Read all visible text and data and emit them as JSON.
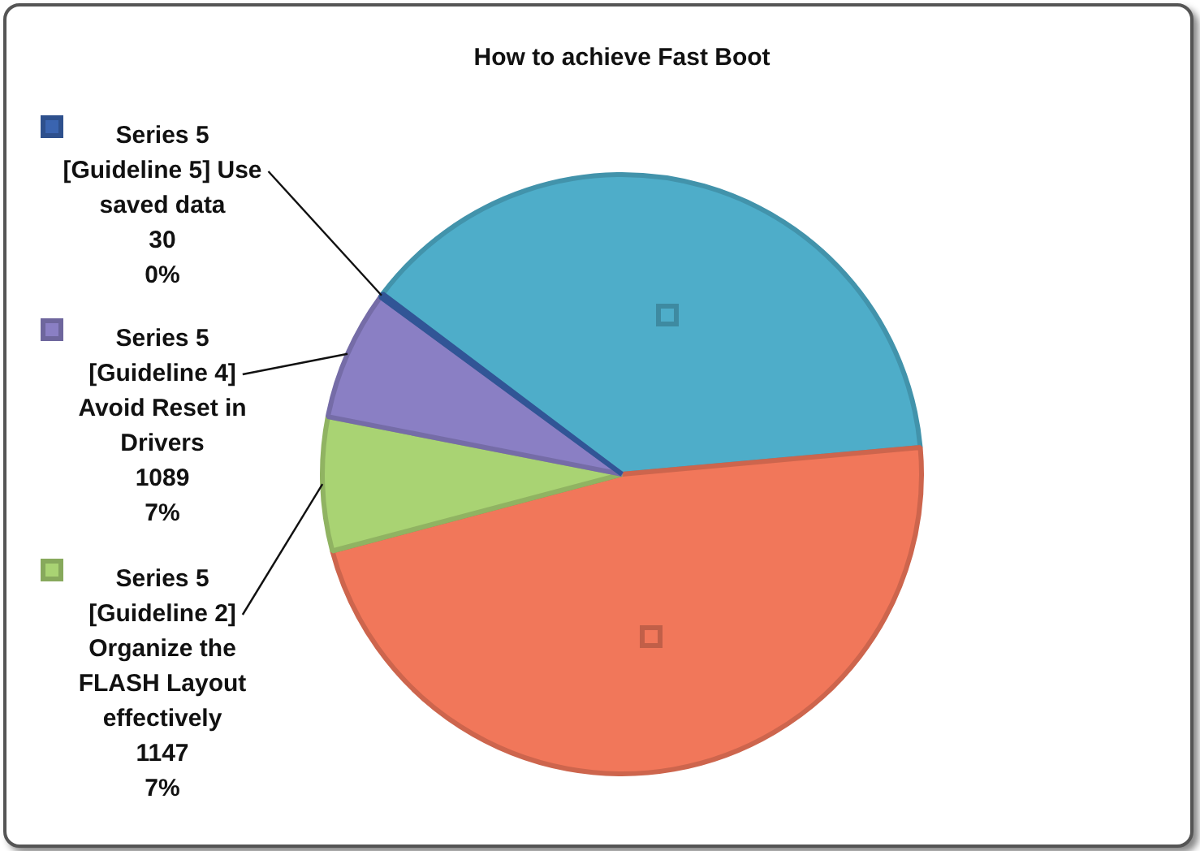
{
  "chart_data": {
    "type": "pie",
    "title": "How to achieve Fast Boot",
    "categories": [
      null,
      null,
      "[Guideline 2] Organize the FLASH Layout effectively",
      "[Guideline 4] Avoid Reset in Drivers",
      "[Guideline 5] Use saved data"
    ],
    "series": [
      {
        "name": "Series 5",
        "values": [
          38.3,
          47.3,
          7.2,
          7.0,
          0.2
        ],
        "colors": [
          "#4eadc9",
          "#f1775a",
          "#a9d373",
          "#8a7fc4",
          "#3a64b0"
        ]
      }
    ],
    "value_labels": [
      null,
      null,
      "1147\n7%",
      "1089\n7%",
      "30\n0%"
    ],
    "legend": "left"
  }
}
